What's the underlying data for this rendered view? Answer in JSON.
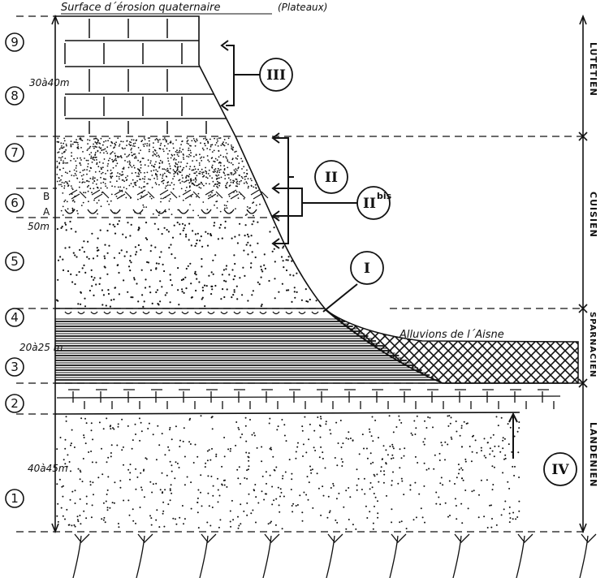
{
  "title": "Surface d´érosion quaternaire",
  "title_note": "(Plateaux)",
  "layers": [
    {
      "id": "9",
      "label": "9"
    },
    {
      "id": "8",
      "label": "8"
    },
    {
      "id": "7",
      "label": "7"
    },
    {
      "id": "6",
      "label": "6"
    },
    {
      "id": "5",
      "label": "5"
    },
    {
      "id": "4",
      "label": "4"
    },
    {
      "id": "3",
      "label": "3"
    },
    {
      "id": "2",
      "label": "2"
    },
    {
      "id": "1",
      "label": "1"
    }
  ],
  "thickness": {
    "lutetien": "30à40m",
    "cuisien": "50m",
    "sparnacien": "20à25 m",
    "landenien": "40à45m"
  },
  "sublevels": {
    "b": "B",
    "a": "A"
  },
  "levels": {
    "iii": "III",
    "ii": "II",
    "iibis": "II",
    "iibis_sup": "bis",
    "i": "I",
    "iv": "IV"
  },
  "alluvium": "Alluvions de l´Aisne",
  "stages": [
    "LUTETIEN",
    "CUISIEN",
    "SPARNACIEN",
    "LANDENIEN"
  ]
}
